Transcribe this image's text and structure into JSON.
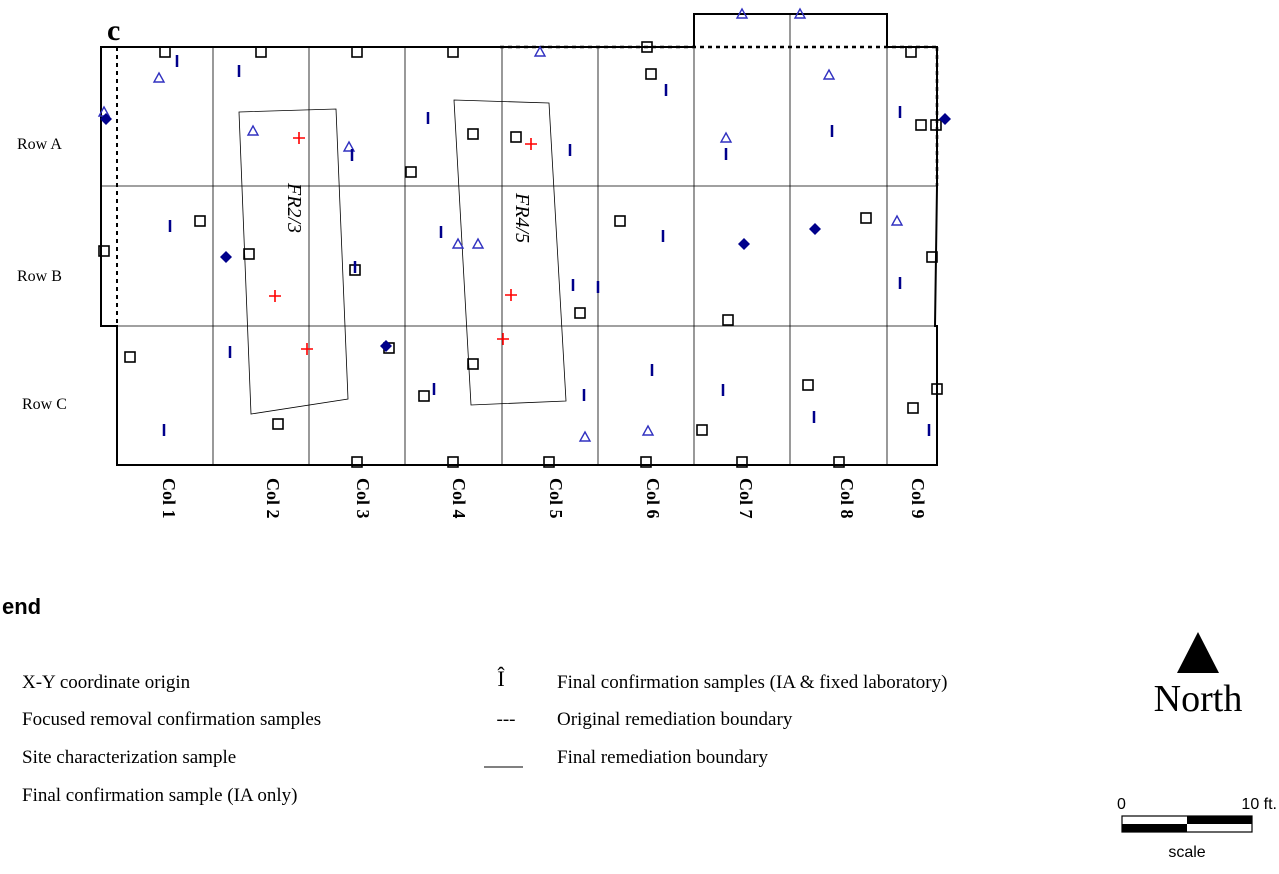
{
  "panel_label": "c",
  "rows": [
    "Row A",
    "Row B",
    "Row C"
  ],
  "columns": [
    "Col 1",
    "Col 2",
    "Col 3",
    "Col 4",
    "Col 5",
    "Col 6",
    "Col 7",
    "Col 8",
    "Col 9"
  ],
  "areas": [
    "FR2/3",
    "FR4/5"
  ],
  "legend": {
    "title": "end",
    "items_left": [
      "X-Y coordinate origin",
      "Focused removal confirmation samples",
      "Site characterization sample",
      "Final confirmation sample (IA only)"
    ],
    "items_right": [
      {
        "symbol": "Î",
        "label": "Final confirmation samples (IA & fixed laboratory)"
      },
      {
        "symbol": "---",
        "label": "Original remediation boundary"
      },
      {
        "symbol": "",
        "label": "Final remediation boundary"
      }
    ]
  },
  "north": {
    "label": "North"
  },
  "scale": {
    "start": "0",
    "end": "10 ft.",
    "label": "scale"
  },
  "colors": {
    "square": "#000000",
    "triangle": "#3030c0",
    "tick": "#00008b",
    "diamond": "#00008b",
    "cross": "#ff0000"
  },
  "symbols": {
    "squares": [
      [
        165,
        52
      ],
      [
        261,
        52
      ],
      [
        357,
        52
      ],
      [
        453,
        52
      ],
      [
        647,
        47
      ],
      [
        911,
        52
      ],
      [
        651,
        74
      ],
      [
        411,
        172
      ],
      [
        473,
        134
      ],
      [
        516,
        137
      ],
      [
        921,
        125
      ],
      [
        936,
        125
      ],
      [
        200,
        221
      ],
      [
        104,
        251
      ],
      [
        249,
        254
      ],
      [
        355,
        270
      ],
      [
        620,
        221
      ],
      [
        866,
        218
      ],
      [
        932,
        257
      ],
      [
        580,
        313
      ],
      [
        728,
        320
      ],
      [
        130,
        357
      ],
      [
        389,
        348
      ],
      [
        473,
        364
      ],
      [
        424,
        396
      ],
      [
        808,
        385
      ],
      [
        937,
        389
      ],
      [
        913,
        408
      ],
      [
        278,
        424
      ],
      [
        702,
        430
      ],
      [
        357,
        462
      ],
      [
        453,
        462
      ],
      [
        549,
        462
      ],
      [
        646,
        462
      ],
      [
        742,
        462
      ],
      [
        839,
        462
      ]
    ],
    "triangles": [
      [
        159,
        78
      ],
      [
        540,
        52
      ],
      [
        742,
        14
      ],
      [
        800,
        14
      ],
      [
        829,
        75
      ],
      [
        104,
        112
      ],
      [
        253,
        131
      ],
      [
        349,
        147
      ],
      [
        726,
        138
      ],
      [
        458,
        244
      ],
      [
        478,
        244
      ],
      [
        897,
        221
      ],
      [
        585,
        437
      ],
      [
        648,
        431
      ]
    ],
    "ticks": [
      [
        177,
        61
      ],
      [
        239,
        71
      ],
      [
        666,
        90
      ],
      [
        428,
        118
      ],
      [
        832,
        131
      ],
      [
        900,
        112
      ],
      [
        570,
        150
      ],
      [
        352,
        155
      ],
      [
        726,
        154
      ],
      [
        170,
        226
      ],
      [
        441,
        232
      ],
      [
        663,
        236
      ],
      [
        355,
        267
      ],
      [
        573,
        285
      ],
      [
        598,
        287
      ],
      [
        900,
        283
      ],
      [
        230,
        352
      ],
      [
        652,
        370
      ],
      [
        434,
        389
      ],
      [
        584,
        395
      ],
      [
        723,
        390
      ],
      [
        814,
        417
      ],
      [
        164,
        430
      ],
      [
        929,
        430
      ]
    ],
    "diamonds": [
      [
        106,
        119
      ],
      [
        945,
        119
      ],
      [
        226,
        257
      ],
      [
        744,
        244
      ],
      [
        815,
        229
      ],
      [
        386,
        346
      ]
    ],
    "crosses": [
      [
        299,
        138
      ],
      [
        531,
        144
      ],
      [
        275,
        296
      ],
      [
        511,
        295
      ],
      [
        307,
        349
      ],
      [
        503,
        339
      ]
    ]
  }
}
